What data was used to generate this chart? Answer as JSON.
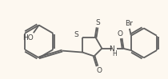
{
  "bg_color": "#fdf8f0",
  "bond_color": "#606060",
  "bond_width": 1.3,
  "text_color": "#404040",
  "font_size": 6.5,
  "fig_width": 2.1,
  "fig_height": 0.99,
  "dpi": 100,
  "xlim": [
    0,
    210
  ],
  "ylim": [
    0,
    99
  ]
}
